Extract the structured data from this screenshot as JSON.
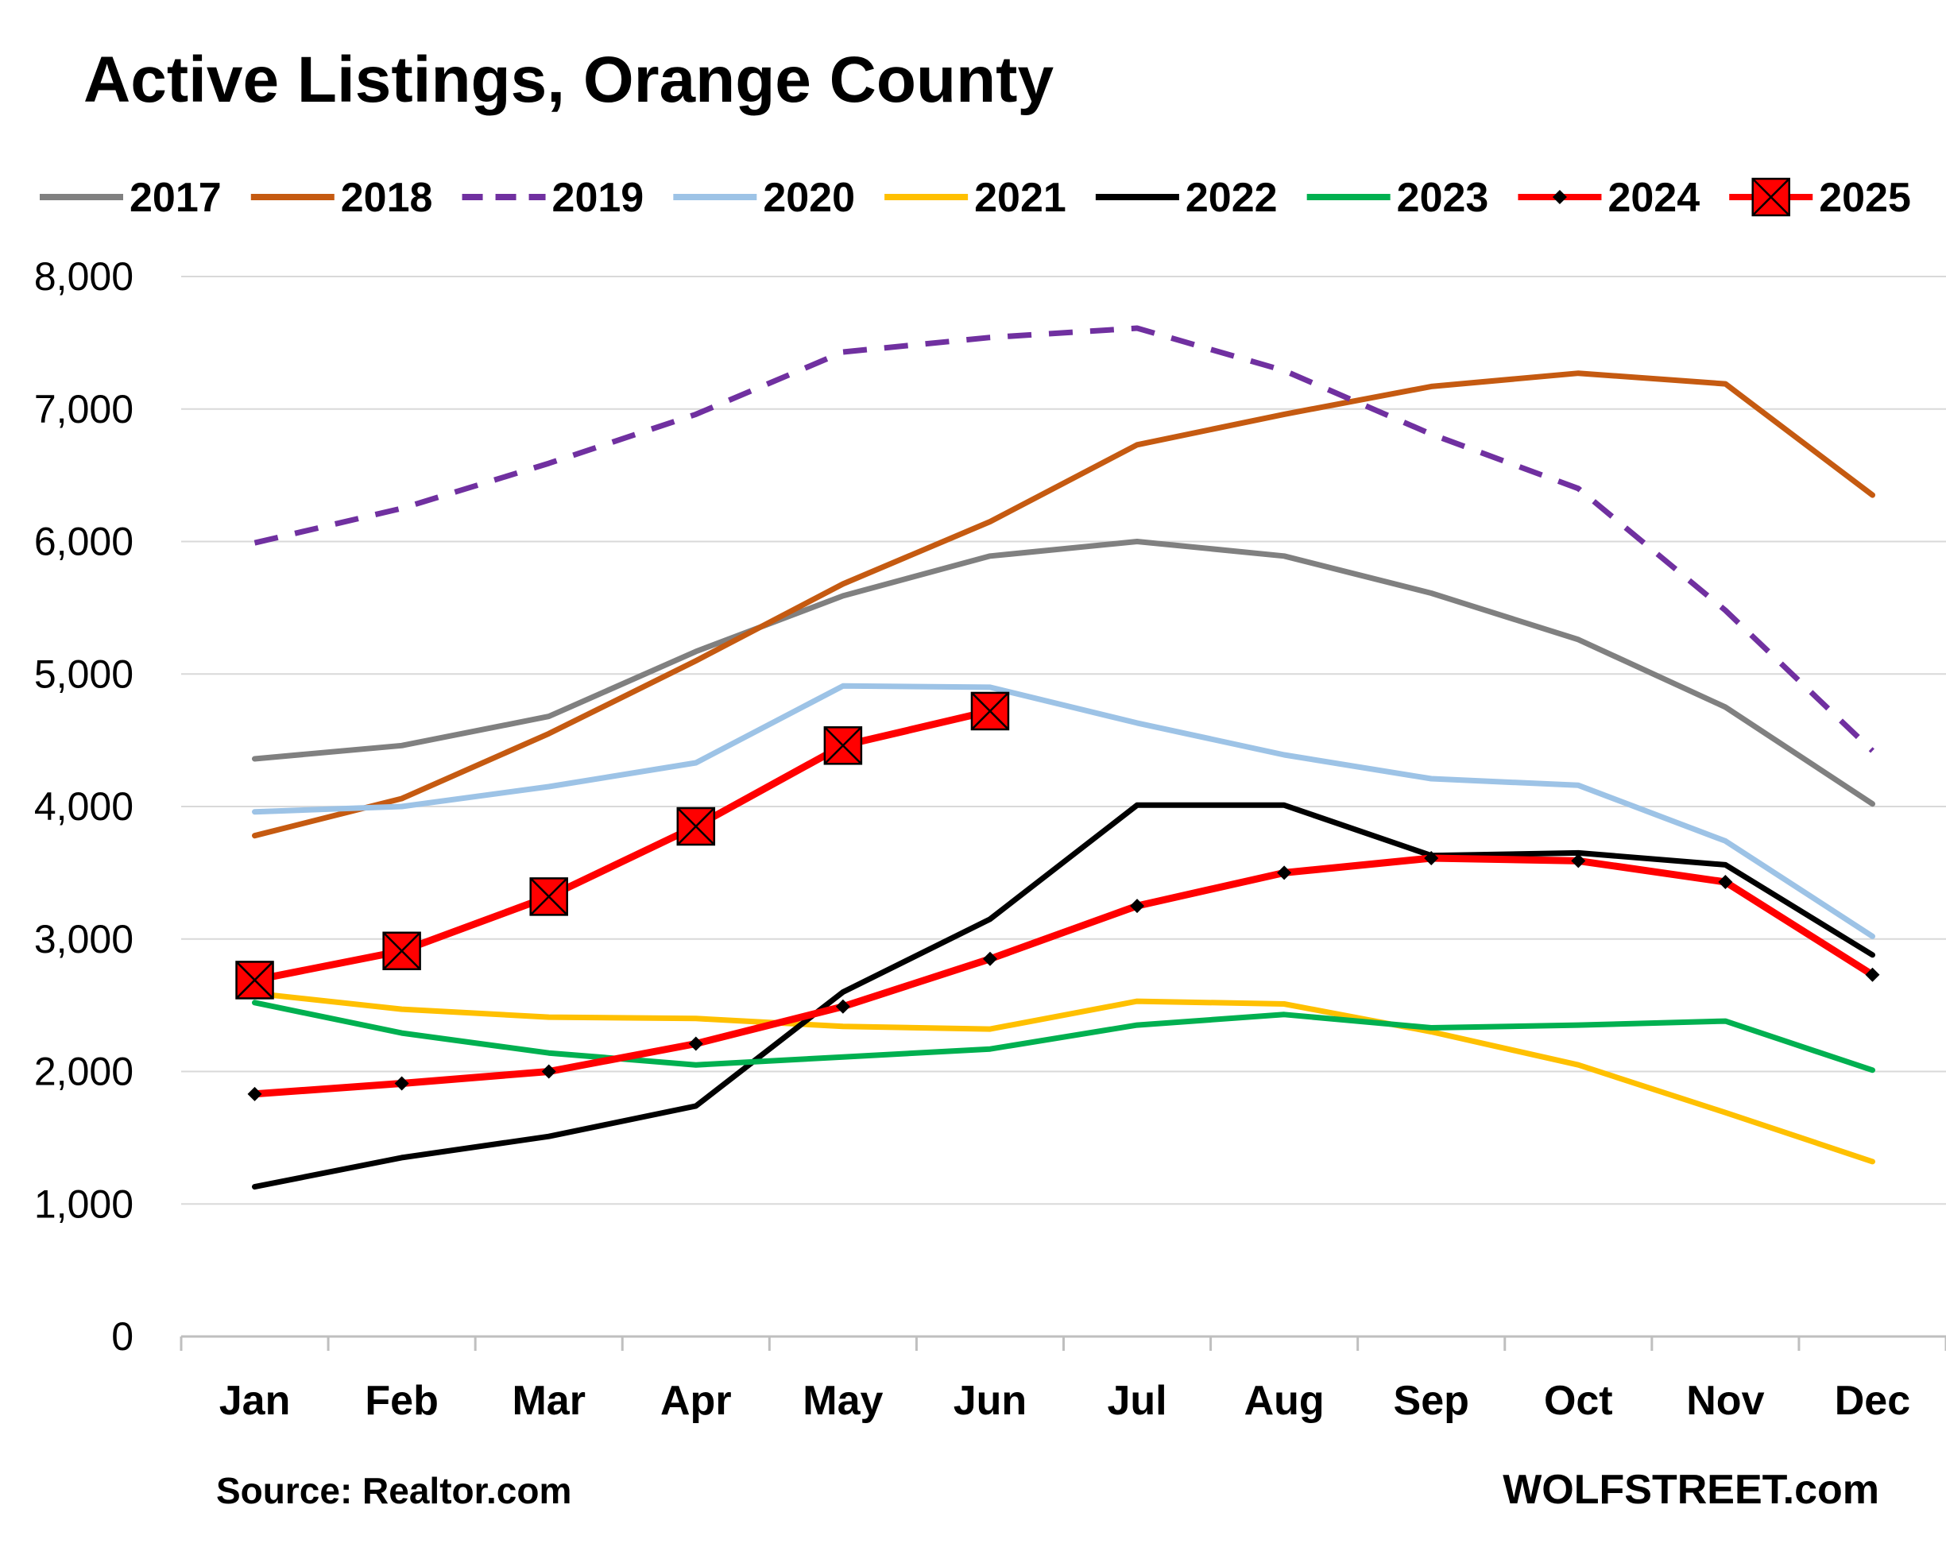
{
  "chart_data": {
    "type": "line",
    "title": "Active Listings, Orange County",
    "xlabel": "",
    "ylabel": "",
    "categories": [
      "Jan",
      "Feb",
      "Mar",
      "Apr",
      "May",
      "Jun",
      "Jul",
      "Aug",
      "Sep",
      "Oct",
      "Nov",
      "Dec"
    ],
    "ylim": [
      0,
      8000
    ],
    "yticks": [
      0,
      1000,
      2000,
      3000,
      4000,
      5000,
      6000,
      7000,
      8000
    ],
    "ytick_labels": [
      "0",
      "1,000",
      "2,000",
      "3,000",
      "4,000",
      "5,000",
      "6,000",
      "7,000",
      "8,000"
    ],
    "grid": true,
    "legend_position": "top",
    "series": [
      {
        "name": "2017",
        "color": "#808080",
        "dash": false,
        "marker": "none",
        "values": [
          4360,
          4460,
          4680,
          5170,
          5590,
          5890,
          6000,
          5890,
          5610,
          5260,
          4750,
          4020
        ]
      },
      {
        "name": "2018",
        "color": "#C55A11",
        "dash": false,
        "marker": "none",
        "values": [
          3780,
          4060,
          4550,
          5100,
          5680,
          6150,
          6730,
          6960,
          7170,
          7270,
          7190,
          6350
        ]
      },
      {
        "name": "2019",
        "color": "#7030A0",
        "dash": true,
        "marker": "none",
        "values": [
          5990,
          6250,
          6590,
          6960,
          7430,
          7540,
          7610,
          7290,
          6810,
          6400,
          5480,
          4420
        ]
      },
      {
        "name": "2020",
        "color": "#9DC3E6",
        "dash": false,
        "marker": "none",
        "values": [
          3960,
          4000,
          4150,
          4330,
          4910,
          4900,
          4630,
          4390,
          4210,
          4160,
          3740,
          3020
        ]
      },
      {
        "name": "2021",
        "color": "#FFC000",
        "dash": false,
        "marker": "none",
        "values": [
          2590,
          2470,
          2410,
          2400,
          2340,
          2320,
          2530,
          2510,
          2300,
          2050,
          1690,
          1320
        ]
      },
      {
        "name": "2022",
        "color": "#000000",
        "dash": false,
        "marker": "none",
        "values": [
          1130,
          1350,
          1510,
          1740,
          2600,
          3150,
          4010,
          4010,
          3630,
          3650,
          3560,
          2880
        ]
      },
      {
        "name": "2023",
        "color": "#00B050",
        "dash": false,
        "marker": "none",
        "values": [
          2520,
          2290,
          2140,
          2050,
          2110,
          2170,
          2350,
          2430,
          2330,
          2350,
          2380,
          2010
        ]
      },
      {
        "name": "2024",
        "color": "#FF0000",
        "dash": false,
        "marker": "diamond",
        "values": [
          1830,
          1910,
          2000,
          2210,
          2490,
          2850,
          3250,
          3500,
          3610,
          3590,
          3430,
          2730
        ]
      },
      {
        "name": "2025",
        "color": "#FF0000",
        "dash": false,
        "marker": "xsquare",
        "values": [
          2690,
          2910,
          3320,
          3850,
          4460,
          4720,
          null,
          null,
          null,
          null,
          null,
          null
        ]
      }
    ],
    "source": "Source: Realtor.com",
    "brand": "WOLFSTREET.com"
  }
}
